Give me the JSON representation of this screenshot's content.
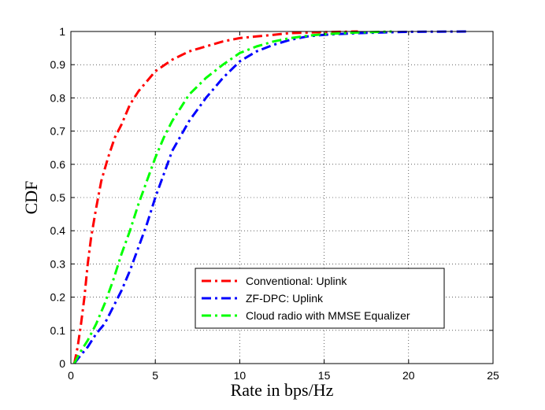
{
  "chart_data": {
    "type": "line",
    "title": "",
    "xlabel": "Rate in bps/Hz",
    "ylabel": "CDF",
    "xlim": [
      0,
      25
    ],
    "ylim": [
      0,
      1
    ],
    "xticks": [
      "0",
      "5",
      "10",
      "15",
      "20",
      "25"
    ],
    "yticks": [
      "0",
      "0.1",
      "0.2",
      "0.3",
      "0.4",
      "0.5",
      "0.6",
      "0.7",
      "0.8",
      "0.9",
      "1"
    ],
    "grid": true,
    "legend_position": "bottom-right",
    "series": [
      {
        "name": "Conventional: Uplink",
        "color": "#ff0000",
        "dash": "dash-dot",
        "x": [
          0.2,
          0.4,
          0.6,
          0.8,
          1.0,
          1.2,
          1.5,
          1.8,
          2.2,
          2.6,
          3.0,
          3.5,
          4.0,
          5.0,
          6.0,
          7.0,
          8.0,
          9.0,
          10.0,
          11.0,
          12.0,
          13.0,
          15.0,
          17.0
        ],
        "y": [
          0.0,
          0.05,
          0.12,
          0.2,
          0.3,
          0.38,
          0.47,
          0.55,
          0.62,
          0.68,
          0.72,
          0.78,
          0.82,
          0.88,
          0.915,
          0.94,
          0.955,
          0.97,
          0.98,
          0.985,
          0.99,
          0.995,
          0.998,
          1.0
        ]
      },
      {
        "name": "ZF-DPC: Uplink",
        "color": "#0000ff",
        "dash": "dash-dot",
        "x": [
          0.2,
          0.5,
          1.0,
          1.5,
          2.0,
          2.5,
          3.0,
          3.5,
          4.0,
          4.5,
          5.0,
          5.5,
          6.0,
          7.0,
          8.0,
          9.0,
          10.0,
          11.0,
          12.0,
          13.0,
          14.0,
          15.0,
          17.0,
          20.0,
          23.5
        ],
        "y": [
          0.0,
          0.02,
          0.05,
          0.09,
          0.12,
          0.17,
          0.22,
          0.28,
          0.35,
          0.42,
          0.5,
          0.57,
          0.64,
          0.73,
          0.8,
          0.86,
          0.91,
          0.94,
          0.96,
          0.975,
          0.985,
          0.99,
          0.995,
          0.999,
          1.0
        ]
      },
      {
        "name": "Cloud radio with MMSE Equalizer",
        "color": "#00ff00",
        "dash": "dash-dot",
        "x": [
          0.2,
          0.5,
          1.0,
          1.5,
          2.0,
          2.5,
          3.0,
          3.5,
          4.0,
          4.5,
          5.0,
          5.5,
          6.0,
          7.0,
          8.0,
          9.0,
          10.0,
          11.0,
          12.0,
          13.0,
          14.0,
          15.0,
          17.0,
          19.0
        ],
        "y": [
          0.0,
          0.03,
          0.07,
          0.12,
          0.18,
          0.25,
          0.33,
          0.4,
          0.48,
          0.55,
          0.62,
          0.68,
          0.73,
          0.81,
          0.86,
          0.9,
          0.935,
          0.955,
          0.97,
          0.98,
          0.987,
          0.992,
          0.997,
          1.0
        ]
      }
    ]
  }
}
